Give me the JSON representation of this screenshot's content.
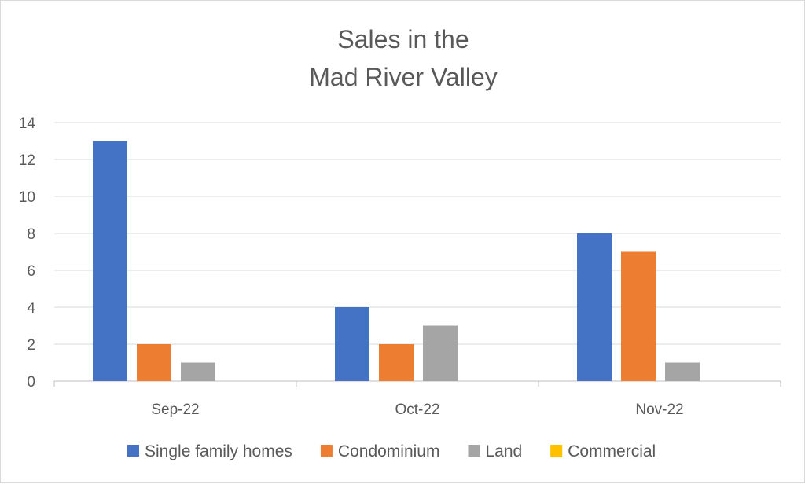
{
  "chart_data": {
    "type": "bar",
    "title_lines": [
      "Sales in the",
      "Mad River Valley"
    ],
    "categories": [
      "Sep-22",
      "Oct-22",
      "Nov-22"
    ],
    "series": [
      {
        "name": "Single family homes",
        "values": [
          13,
          4,
          8
        ],
        "color": "#4472C4"
      },
      {
        "name": "Condominium",
        "values": [
          2,
          2,
          7
        ],
        "color": "#ED7D31"
      },
      {
        "name": "Land",
        "values": [
          1,
          3,
          1
        ],
        "color": "#A5A5A5"
      },
      {
        "name": "Commercial",
        "values": [
          0,
          0,
          0
        ],
        "color": "#FFC000"
      }
    ],
    "y_ticks": [
      0,
      2,
      4,
      6,
      8,
      10,
      12,
      14
    ],
    "ylim": [
      0,
      14
    ],
    "grid": true,
    "legend_position": "bottom",
    "xlabel": "",
    "ylabel": ""
  }
}
